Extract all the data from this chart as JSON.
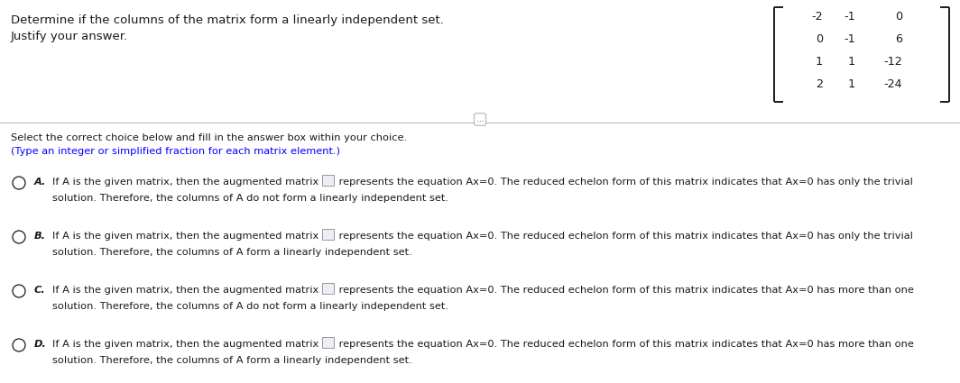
{
  "title_line1": "Determine if the columns of the matrix form a linearly independent set.",
  "title_line2": "Justify your answer.",
  "matrix": [
    [
      "-2",
      "-1",
      "0"
    ],
    [
      "0",
      "-1",
      "6"
    ],
    [
      "1",
      "1",
      "-12"
    ],
    [
      "2",
      "1",
      "-24"
    ]
  ],
  "select_text": "Select the correct choice below and fill in the answer box within your choice.",
  "select_subtext": "(Type an integer or simplified fraction for each matrix element.)",
  "choices": [
    {
      "label": "A.",
      "pre_box": "If A is the given matrix, then the augmented matrix ",
      "post_box": " represents the equation Ax​=​0. The reduced echelon form of this matrix indicates that Ax​=​0 has only the trivial",
      "line2": "solution. Therefore, the columns of A do not form a linearly independent set."
    },
    {
      "label": "B.",
      "pre_box": "If A is the given matrix, then the augmented matrix ",
      "post_box": " represents the equation Ax​=​0. The reduced echelon form of this matrix indicates that Ax​=​0 has only the trivial",
      "line2": "solution. Therefore, the columns of A form a linearly independent set."
    },
    {
      "label": "C.",
      "pre_box": "If A is the given matrix, then the augmented matrix ",
      "post_box": " represents the equation Ax​=​0. The reduced echelon form of this matrix indicates that Ax​=​0 has more than one",
      "line2": "solution. Therefore, the columns of A do not form a linearly independent set."
    },
    {
      "label": "D.",
      "pre_box": "If A is the given matrix, then the augmented matrix ",
      "post_box": " represents the equation Ax​=​0. The reduced echelon form of this matrix indicates that Ax​=​0 has more than one",
      "line2": "solution. Therefore, the columns of A form a linearly independent set."
    }
  ],
  "bg_color": "#ffffff",
  "text_color": "#1a1a1a",
  "blue_color": "#0000ff",
  "gray_color": "#888888",
  "font_size_title": 9.5,
  "font_size_body": 8.2,
  "font_size_matrix": 9.2
}
